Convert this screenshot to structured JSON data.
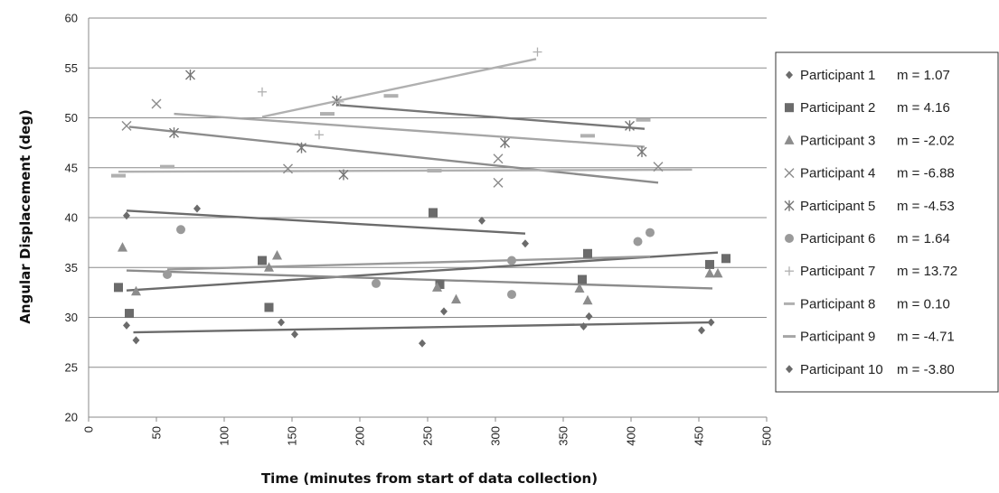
{
  "chart_data": {
    "type": "scatter",
    "title": "",
    "xlabel": "Time (minutes from start of data collection)",
    "ylabel": "Angular Displacement (deg)",
    "xlim": [
      0,
      500
    ],
    "ylim": [
      20,
      60
    ],
    "x_ticks": [
      "0",
      "50",
      "100",
      "150",
      "200",
      "250",
      "300",
      "350",
      "400",
      "450",
      "500"
    ],
    "y_ticks": [
      "20",
      "25",
      "30",
      "35",
      "40",
      "45",
      "50",
      "55",
      "60"
    ],
    "grid": "horizontal",
    "legend_position": "right",
    "series": [
      {
        "name": "Participant 1",
        "slope_label": "m = 1.07",
        "marker": "diamond",
        "color": "#6b6b6b",
        "points": [
          [
            28,
            29.2
          ],
          [
            35,
            27.7
          ],
          [
            142,
            29.5
          ],
          [
            152,
            28.3
          ],
          [
            246,
            27.4
          ],
          [
            262,
            30.6
          ],
          [
            365,
            29.1
          ],
          [
            369,
            30.1
          ],
          [
            452,
            28.7
          ],
          [
            459,
            29.5
          ]
        ],
        "trend": [
          [
            33,
            28.5
          ],
          [
            459,
            29.5
          ]
        ]
      },
      {
        "name": "Participant 2",
        "slope_label": "m = 4.16",
        "marker": "square",
        "color": "#6b6b6b",
        "points": [
          [
            22,
            33
          ],
          [
            30,
            30.4
          ],
          [
            128,
            35.7
          ],
          [
            133,
            31
          ],
          [
            254,
            40.5
          ],
          [
            259,
            33.3
          ],
          [
            364,
            33.8
          ],
          [
            368,
            36.4
          ],
          [
            458,
            35.3
          ],
          [
            470,
            35.9
          ]
        ],
        "trend": [
          [
            28,
            32.7
          ],
          [
            464,
            36.5
          ]
        ]
      },
      {
        "name": "Participant 3",
        "slope_label": "m = -2.02",
        "marker": "triangle",
        "color": "#8c8c8c",
        "points": [
          [
            25,
            37
          ],
          [
            35,
            32.6
          ],
          [
            133,
            35
          ],
          [
            139,
            36.2
          ],
          [
            257,
            33
          ],
          [
            271,
            31.8
          ],
          [
            362,
            32.9
          ],
          [
            368,
            31.7
          ],
          [
            458,
            34.4
          ],
          [
            464,
            34.4
          ]
        ],
        "trend": [
          [
            28,
            34.7
          ],
          [
            460,
            32.9
          ]
        ]
      },
      {
        "name": "Participant 4",
        "slope_label": "m = -6.88",
        "marker": "x",
        "color": "#8c8c8c",
        "points": [
          [
            28,
            49.2
          ],
          [
            50,
            51.4
          ],
          [
            147,
            44.9
          ],
          [
            302,
            43.5
          ],
          [
            302,
            45.9
          ],
          [
            420,
            45.1
          ]
        ],
        "trend": [
          [
            30,
            49.1
          ],
          [
            420,
            43.5
          ]
        ]
      },
      {
        "name": "Participant 5",
        "slope_label": "m = -4.53",
        "marker": "star",
        "color": "#777777",
        "points": [
          [
            63,
            48.5
          ],
          [
            75,
            54.3
          ],
          [
            157,
            47
          ],
          [
            188,
            44.3
          ],
          [
            183,
            51.7
          ],
          [
            307,
            47.5
          ],
          [
            399,
            49.2
          ],
          [
            408,
            46.6
          ]
        ],
        "trend": [
          [
            183,
            51.3
          ],
          [
            410,
            48.9
          ]
        ]
      },
      {
        "name": "Participant 6",
        "slope_label": "m = 1.64",
        "marker": "circle",
        "color": "#9a9a9a",
        "points": [
          [
            58,
            34.3
          ],
          [
            68,
            38.8
          ],
          [
            212,
            33.4
          ],
          [
            312,
            35.7
          ],
          [
            312,
            32.3
          ],
          [
            405,
            37.6
          ],
          [
            414,
            38.5
          ]
        ],
        "trend": [
          [
            58,
            34.8
          ],
          [
            414,
            36.1
          ]
        ]
      },
      {
        "name": "Participant 7",
        "slope_label": "m = 13.72",
        "marker": "plus",
        "color": "#b0b0b0",
        "points": [
          [
            128,
            52.6
          ],
          [
            170,
            48.3
          ],
          [
            185,
            51.6
          ],
          [
            331,
            56.6
          ]
        ],
        "trend": [
          [
            128,
            50.1
          ],
          [
            330,
            55.9
          ]
        ]
      },
      {
        "name": "Participant 8",
        "slope_label": "m = 0.10",
        "marker": "dash",
        "color": "#b0b0b0",
        "points": [
          [
            22,
            44.2
          ],
          [
            58,
            45.1
          ],
          [
            176,
            50.4
          ],
          [
            223,
            52.2
          ],
          [
            255,
            44.7
          ],
          [
            368,
            48.2
          ],
          [
            409,
            49.8
          ]
        ],
        "trend": [
          [
            22,
            44.6
          ],
          [
            445,
            44.8
          ]
        ]
      },
      {
        "name": "Participant 9",
        "slope_label": "m = -4.71",
        "marker": "dash",
        "color": "#a6a6a6",
        "points": [],
        "trend": [
          [
            63,
            50.4
          ],
          [
            410,
            47.1
          ]
        ]
      },
      {
        "name": "Participant 10",
        "slope_label": "m = -3.80",
        "marker": "diamond",
        "color": "#6b6b6b",
        "points": [
          [
            28,
            40.2
          ],
          [
            80,
            40.9
          ],
          [
            290,
            39.7
          ],
          [
            322,
            37.4
          ]
        ],
        "trend": [
          [
            28,
            40.7
          ],
          [
            322,
            38.4
          ]
        ]
      }
    ]
  }
}
